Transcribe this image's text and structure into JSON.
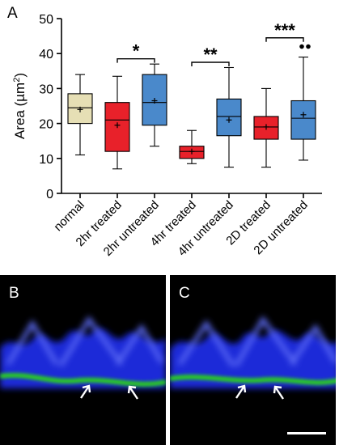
{
  "chart_data": {
    "type": "box",
    "panel_label": "A",
    "ylabel": "Area (µm²)",
    "ylabel_base": "Area (",
    "ylabel_unit": "µm",
    "ylabel_exp": "2",
    "ylabel_close": ")",
    "ylim": [
      0,
      50
    ],
    "yticks": [
      0,
      10,
      20,
      30,
      40,
      50
    ],
    "categories": [
      "normal",
      "2hr treated",
      "2hr untreated",
      "4hr treated",
      "4hr untreated",
      "2D treated",
      "2D untreated"
    ],
    "colors": [
      "#e6dfb5",
      "#e8212a",
      "#4a89cb",
      "#e8212a",
      "#4a89cb",
      "#e8212a",
      "#4a89cb"
    ],
    "boxes": [
      {
        "min": 11,
        "q1": 20,
        "median": 24.5,
        "q3": 28.5,
        "max": 34,
        "mean": 24
      },
      {
        "min": 7,
        "q1": 12,
        "median": 21,
        "q3": 26,
        "max": 33.5,
        "mean": 19.5
      },
      {
        "min": 13.5,
        "q1": 19.5,
        "median": 26,
        "q3": 34,
        "max": 37,
        "mean": 26.5
      },
      {
        "min": 8.5,
        "q1": 10,
        "median": 12,
        "q3": 13.5,
        "max": 18,
        "mean": 12
      },
      {
        "min": 7.5,
        "q1": 16.5,
        "median": 22,
        "q3": 27,
        "max": 36,
        "mean": 21
      },
      {
        "min": 7.5,
        "q1": 15.5,
        "median": 19,
        "q3": 22,
        "max": 30,
        "mean": 19
      },
      {
        "min": 9.5,
        "q1": 15.5,
        "median": 21.5,
        "q3": 26.5,
        "max": 39,
        "mean": 22.5
      }
    ],
    "outliers": [
      {
        "category": 6,
        "value": 42
      },
      {
        "category": 6,
        "value": 42
      }
    ],
    "significance": [
      {
        "from": 1,
        "to": 2,
        "label": "*",
        "y": 38.5
      },
      {
        "from": 3,
        "to": 4,
        "label": "**",
        "y": 37.5
      },
      {
        "from": 5,
        "to": 6,
        "label": "***",
        "y": 44.5
      }
    ]
  },
  "micrographs": [
    {
      "label": "B",
      "arrows": 2
    },
    {
      "label": "C",
      "arrows": 2
    }
  ]
}
